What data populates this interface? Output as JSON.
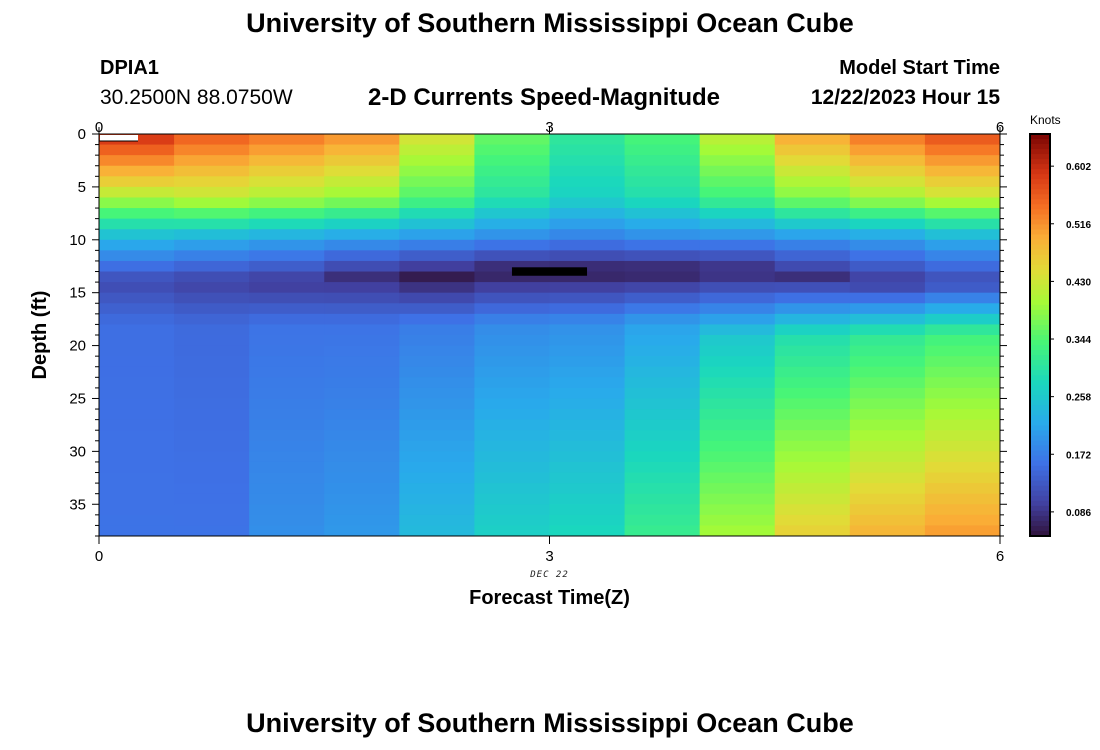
{
  "header": {
    "title": "University of Southern Mississippi Ocean Cube",
    "station": "DPIA1",
    "coordinates": "30.2500N  88.0750W",
    "plot_title": "2-D Currents Speed-Magnitude",
    "model_label": "Model Start Time",
    "model_time": "12/22/2023 Hour 15"
  },
  "footer": {
    "title": "University of Southern Mississippi Ocean Cube"
  },
  "chart_data": {
    "type": "heatmap",
    "title": "2-D Currents Speed-Magnitude",
    "xlabel": "Forecast Time(Z)",
    "ylabel": "Depth (ft)",
    "x_date_label": "DEC 22",
    "xlim": [
      0,
      6
    ],
    "ylim": [
      0,
      38
    ],
    "y_inverted": true,
    "x_ticks": [
      0,
      3,
      6
    ],
    "y_ticks": [
      0,
      5,
      10,
      15,
      20,
      25,
      30,
      35
    ],
    "colorbar": {
      "unit": "Knots",
      "min": 0.05,
      "max": 0.65,
      "ticks": [
        "0.086",
        "0.172",
        "0.258",
        "0.344",
        "0.430",
        "0.516",
        "0.602"
      ]
    },
    "time_columns": [
      0.25,
      0.75,
      1.25,
      1.75,
      2.25,
      2.75,
      3.25,
      3.75,
      4.25,
      4.75,
      5.25,
      5.75
    ],
    "profiles": [
      {
        "t": 0.25,
        "surface": 0.6,
        "d1": 5,
        "mid": 0.23,
        "d2": 10,
        "min": 0.11,
        "dmin": 14,
        "d3": 18,
        "deep": 0.16
      },
      {
        "t": 0.75,
        "surface": 0.56,
        "d1": 6,
        "mid": 0.22,
        "d2": 10,
        "min": 0.1,
        "dmin": 14,
        "d3": 18,
        "deep": 0.16
      },
      {
        "t": 1.25,
        "surface": 0.54,
        "d1": 6,
        "mid": 0.21,
        "d2": 10,
        "min": 0.09,
        "dmin": 14,
        "d3": 18,
        "deep": 0.19
      },
      {
        "t": 1.75,
        "surface": 0.52,
        "d1": 6,
        "mid": 0.2,
        "d2": 10,
        "min": 0.08,
        "dmin": 13.5,
        "d3": 18,
        "deep": 0.2
      },
      {
        "t": 2.25,
        "surface": 0.44,
        "d1": 6,
        "mid": 0.19,
        "d2": 10,
        "min": 0.06,
        "dmin": 13.5,
        "d3": 18,
        "deep": 0.24
      },
      {
        "t": 2.75,
        "surface": 0.36,
        "d1": 6,
        "mid": 0.18,
        "d2": 10,
        "min": 0.06,
        "dmin": 13,
        "d3": 18,
        "deep": 0.27
      },
      {
        "t": 3.25,
        "surface": 0.31,
        "d1": 6,
        "mid": 0.17,
        "d2": 10,
        "min": 0.06,
        "dmin": 13,
        "d3": 18,
        "deep": 0.28
      },
      {
        "t": 3.75,
        "surface": 0.34,
        "d1": 6,
        "mid": 0.18,
        "d2": 10,
        "min": 0.06,
        "dmin": 13,
        "d3": 18,
        "deep": 0.32
      },
      {
        "t": 4.25,
        "surface": 0.42,
        "d1": 6,
        "mid": 0.18,
        "d2": 10,
        "min": 0.07,
        "dmin": 13,
        "d3": 19,
        "deep": 0.4
      },
      {
        "t": 4.75,
        "surface": 0.5,
        "d1": 6,
        "mid": 0.19,
        "d2": 10,
        "min": 0.08,
        "dmin": 13.5,
        "d3": 19,
        "deep": 0.46
      },
      {
        "t": 5.25,
        "surface": 0.54,
        "d1": 6,
        "mid": 0.2,
        "d2": 10,
        "min": 0.09,
        "dmin": 14,
        "d3": 19,
        "deep": 0.49
      },
      {
        "t": 5.75,
        "surface": 0.57,
        "d1": 6,
        "mid": 0.22,
        "d2": 10,
        "min": 0.11,
        "dmin": 14,
        "d3": 19,
        "deep": 0.51
      }
    ],
    "masked_cells": [
      {
        "t0": 2.75,
        "t1": 3.25,
        "depth0": 12.6,
        "depth1": 13.4
      }
    ]
  }
}
